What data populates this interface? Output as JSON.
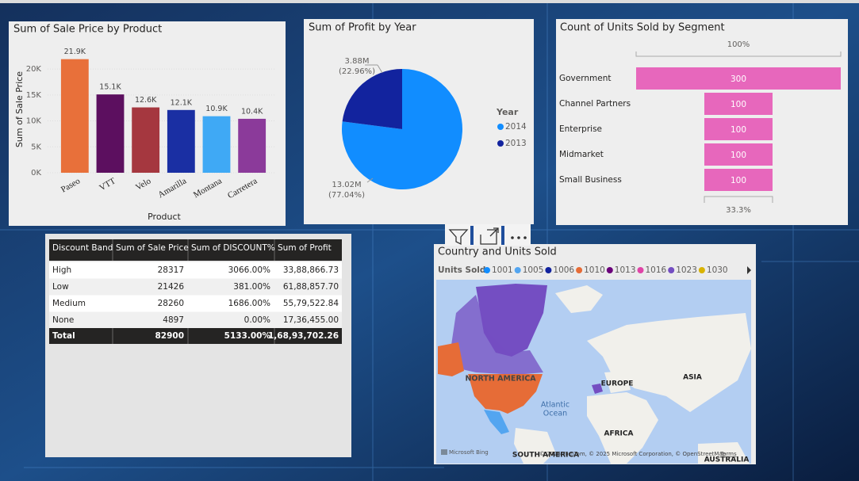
{
  "chart_data": [
    {
      "type": "bar",
      "title": "Sum of Sale Price by Product",
      "x_label": "Product",
      "y_label": "Sum of Sale Price",
      "categories": [
        "Paseo",
        "VTT",
        "Velo",
        "Amarilla",
        "Montana",
        "Carretera"
      ],
      "values": [
        21900,
        15100,
        12600,
        12100,
        10900,
        10400
      ],
      "value_labels": [
        "21.9K",
        "15.1K",
        "12.6K",
        "12.1K",
        "10.9K",
        "10.4K"
      ],
      "colors": [
        "#e8703a",
        "#5c0f5f",
        "#a5373f",
        "#1a2fa3",
        "#3fa9f5",
        "#8b3a9a"
      ],
      "ylim": [
        0,
        22000
      ],
      "yticks": [
        {
          "value": 0,
          "label": "0K"
        },
        {
          "value": 5000,
          "label": "5K"
        },
        {
          "value": 10000,
          "label": "10K"
        },
        {
          "value": 15000,
          "label": "15K"
        },
        {
          "value": 20000,
          "label": "20K"
        }
      ],
      "grid": true
    },
    {
      "type": "pie",
      "title": "Sum of Profit by Year",
      "legend_title": "Year",
      "legend": "right",
      "categories": [
        "2014",
        "2013"
      ],
      "values": [
        13020000,
        3880000
      ],
      "value_labels": [
        "13.02M",
        "3.88M"
      ],
      "percents": [
        77.04,
        22.96
      ],
      "percent_labels": [
        "(77.04%)",
        "(22.96%)"
      ],
      "colors": [
        "#118dff",
        "#12239e"
      ]
    },
    {
      "type": "funnel",
      "title": "Count of Units Sold by Segment",
      "categories": [
        "Government",
        "Channel Partners",
        "Enterprise",
        "Midmarket",
        "Small Business"
      ],
      "values": [
        300,
        100,
        100,
        100,
        100
      ],
      "color": "#e767bc",
      "top_percent": {
        "value": 100,
        "label": "100%"
      },
      "bottom_percent": {
        "value": 33.3,
        "label": "33.3%"
      }
    }
  ],
  "table": {
    "columns": [
      "Discount Band",
      "Sum of Sale Price",
      "Sum of DISCOUNT%",
      "Sum of Profit"
    ],
    "rows": [
      [
        "High",
        "28317",
        "3066.00%",
        "33,88,866.73"
      ],
      [
        "Low",
        "21426",
        "381.00%",
        "61,88,857.70"
      ],
      [
        "Medium",
        "28260",
        "1686.00%",
        "55,79,522.84"
      ],
      [
        "None",
        "4897",
        "0.00%",
        "17,36,455.00"
      ]
    ],
    "total": [
      "Total",
      "82900",
      "5133.00%",
      "1,68,93,702.26"
    ]
  },
  "map": {
    "title": "Country and Units Sold",
    "legend_title": "Units Sold",
    "legend": [
      {
        "name": "1001",
        "color": "#118dff"
      },
      {
        "name": "1005",
        "color": "#53a5f0"
      },
      {
        "name": "1006",
        "color": "#12239e"
      },
      {
        "name": "1010",
        "color": "#e66c37"
      },
      {
        "name": "1013",
        "color": "#6b007b"
      },
      {
        "name": "1016",
        "color": "#e044a7"
      },
      {
        "name": "1023",
        "color": "#744ec2"
      },
      {
        "name": "1030",
        "color": "#d9b300"
      }
    ],
    "labels": [
      "NORTH AMERICA",
      "EUROPE",
      "ASIA",
      "AFRICA",
      "Atlantic",
      "Ocean",
      "SOUTH AMERICA",
      "AUSTRALIA"
    ],
    "provider": "Microsoft Bing",
    "attribution": "© 2025 TomTom, © 2025 Microsoft Corporation, © OpenStreetMap",
    "terms": "Terms"
  }
}
